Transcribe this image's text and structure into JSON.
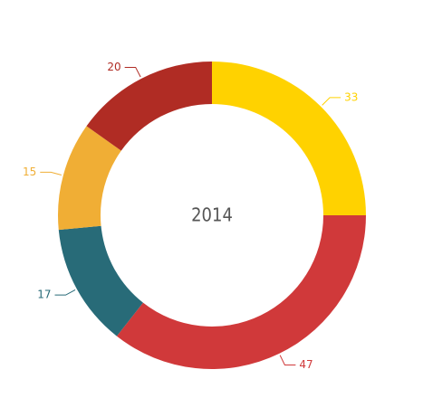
{
  "chart_data": {
    "type": "donut",
    "center_label": "2014",
    "values": [
      33,
      47,
      17,
      15,
      20
    ],
    "colors": [
      "#ffd200",
      "#d0393a",
      "#286b78",
      "#f0ae35",
      "#b02c24"
    ]
  }
}
